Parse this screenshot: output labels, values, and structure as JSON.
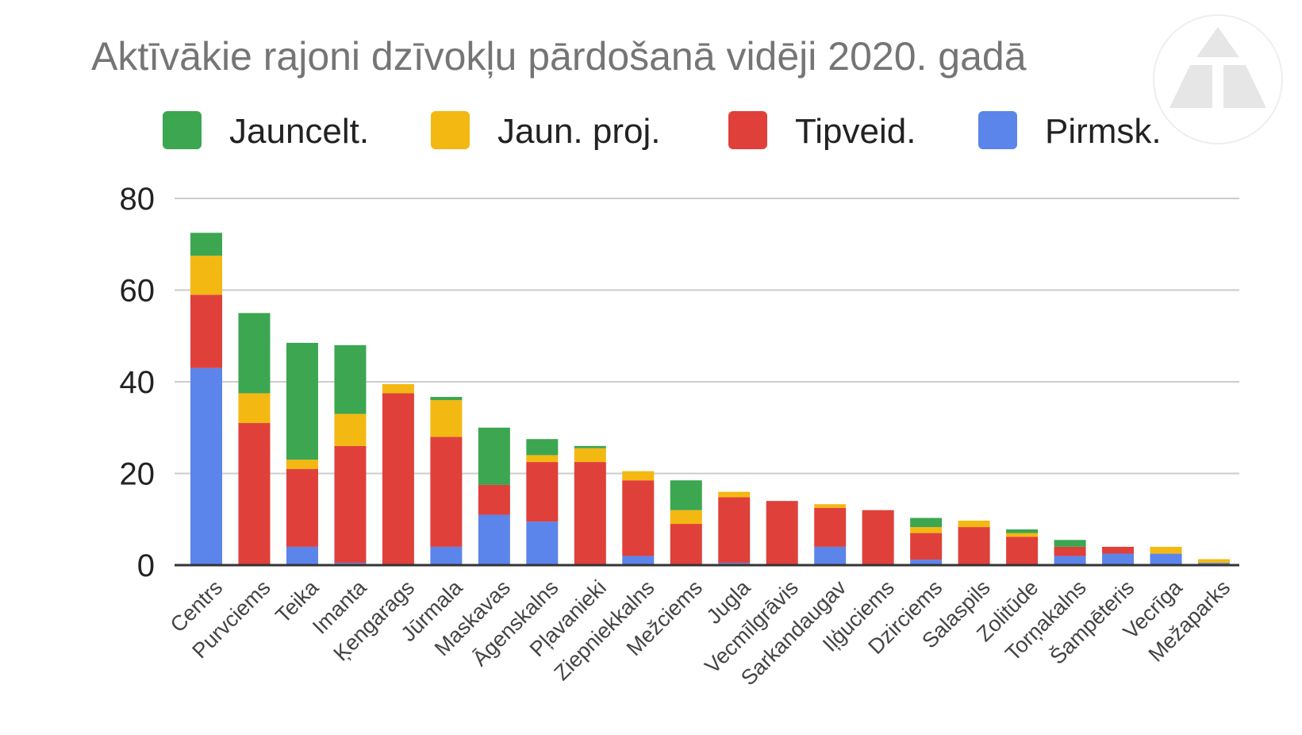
{
  "chart_data": {
    "type": "bar",
    "stacked": true,
    "title": "Aktīvākie rajoni dzīvokļu pārdošanā vidēji 2020. gadā",
    "xlabel": "",
    "ylabel": "",
    "ylim": [
      0,
      80
    ],
    "yticks": [
      "0",
      "20",
      "40",
      "60",
      "80"
    ],
    "grid": true,
    "legend_position": "top",
    "categories": [
      "Centrs",
      "Purvciems",
      "Teika",
      "Imanta",
      "Ķengarags",
      "Jūrmala",
      "Maskavas",
      "Āgenskalns",
      "Pļavanieki",
      "Ziepniekkalns",
      "Mežciems",
      "Jugla",
      "Vecmīlgrāvis",
      "Sarkandaugav",
      "Iļģuciems",
      "Dzirciems",
      "Salaspils",
      "Zolitūde",
      "Torņakalns",
      "Šampēteris",
      "Vecrīga",
      "Mežaparks"
    ],
    "series": [
      {
        "name": "Pirmsk.",
        "color": "#5b85eb",
        "values": [
          43,
          0,
          4,
          0.5,
          0,
          4,
          11,
          9.5,
          0,
          2,
          0,
          0.5,
          0,
          4,
          0,
          1.2,
          0,
          0,
          2,
          2.5,
          2.5,
          0.5
        ]
      },
      {
        "name": "Tipveid.",
        "color": "#e0403a",
        "values": [
          16,
          31,
          17,
          25.5,
          37.5,
          24,
          6.5,
          13,
          22.5,
          16.5,
          9,
          14.3,
          14,
          8.5,
          12,
          5.8,
          8.3,
          6.2,
          2,
          1.5,
          0,
          0
        ]
      },
      {
        "name": "Jaun. proj.",
        "color": "#f4b812",
        "values": [
          8.5,
          6.5,
          2,
          7,
          2,
          8,
          0,
          1.5,
          3,
          2,
          3,
          1.2,
          0,
          0.8,
          0,
          1.3,
          1.4,
          0.8,
          0,
          0,
          1.5,
          0.8
        ]
      },
      {
        "name": "Jauncelt.",
        "color": "#3ca650",
        "values": [
          5,
          17.5,
          25.5,
          15,
          0,
          0.7,
          12.5,
          3.5,
          0.5,
          0,
          6.5,
          0,
          0,
          0,
          0,
          2,
          0,
          0.8,
          1.5,
          0,
          0,
          0
        ]
      }
    ]
  },
  "logo": {
    "name": "watermark-triangle-logo"
  }
}
